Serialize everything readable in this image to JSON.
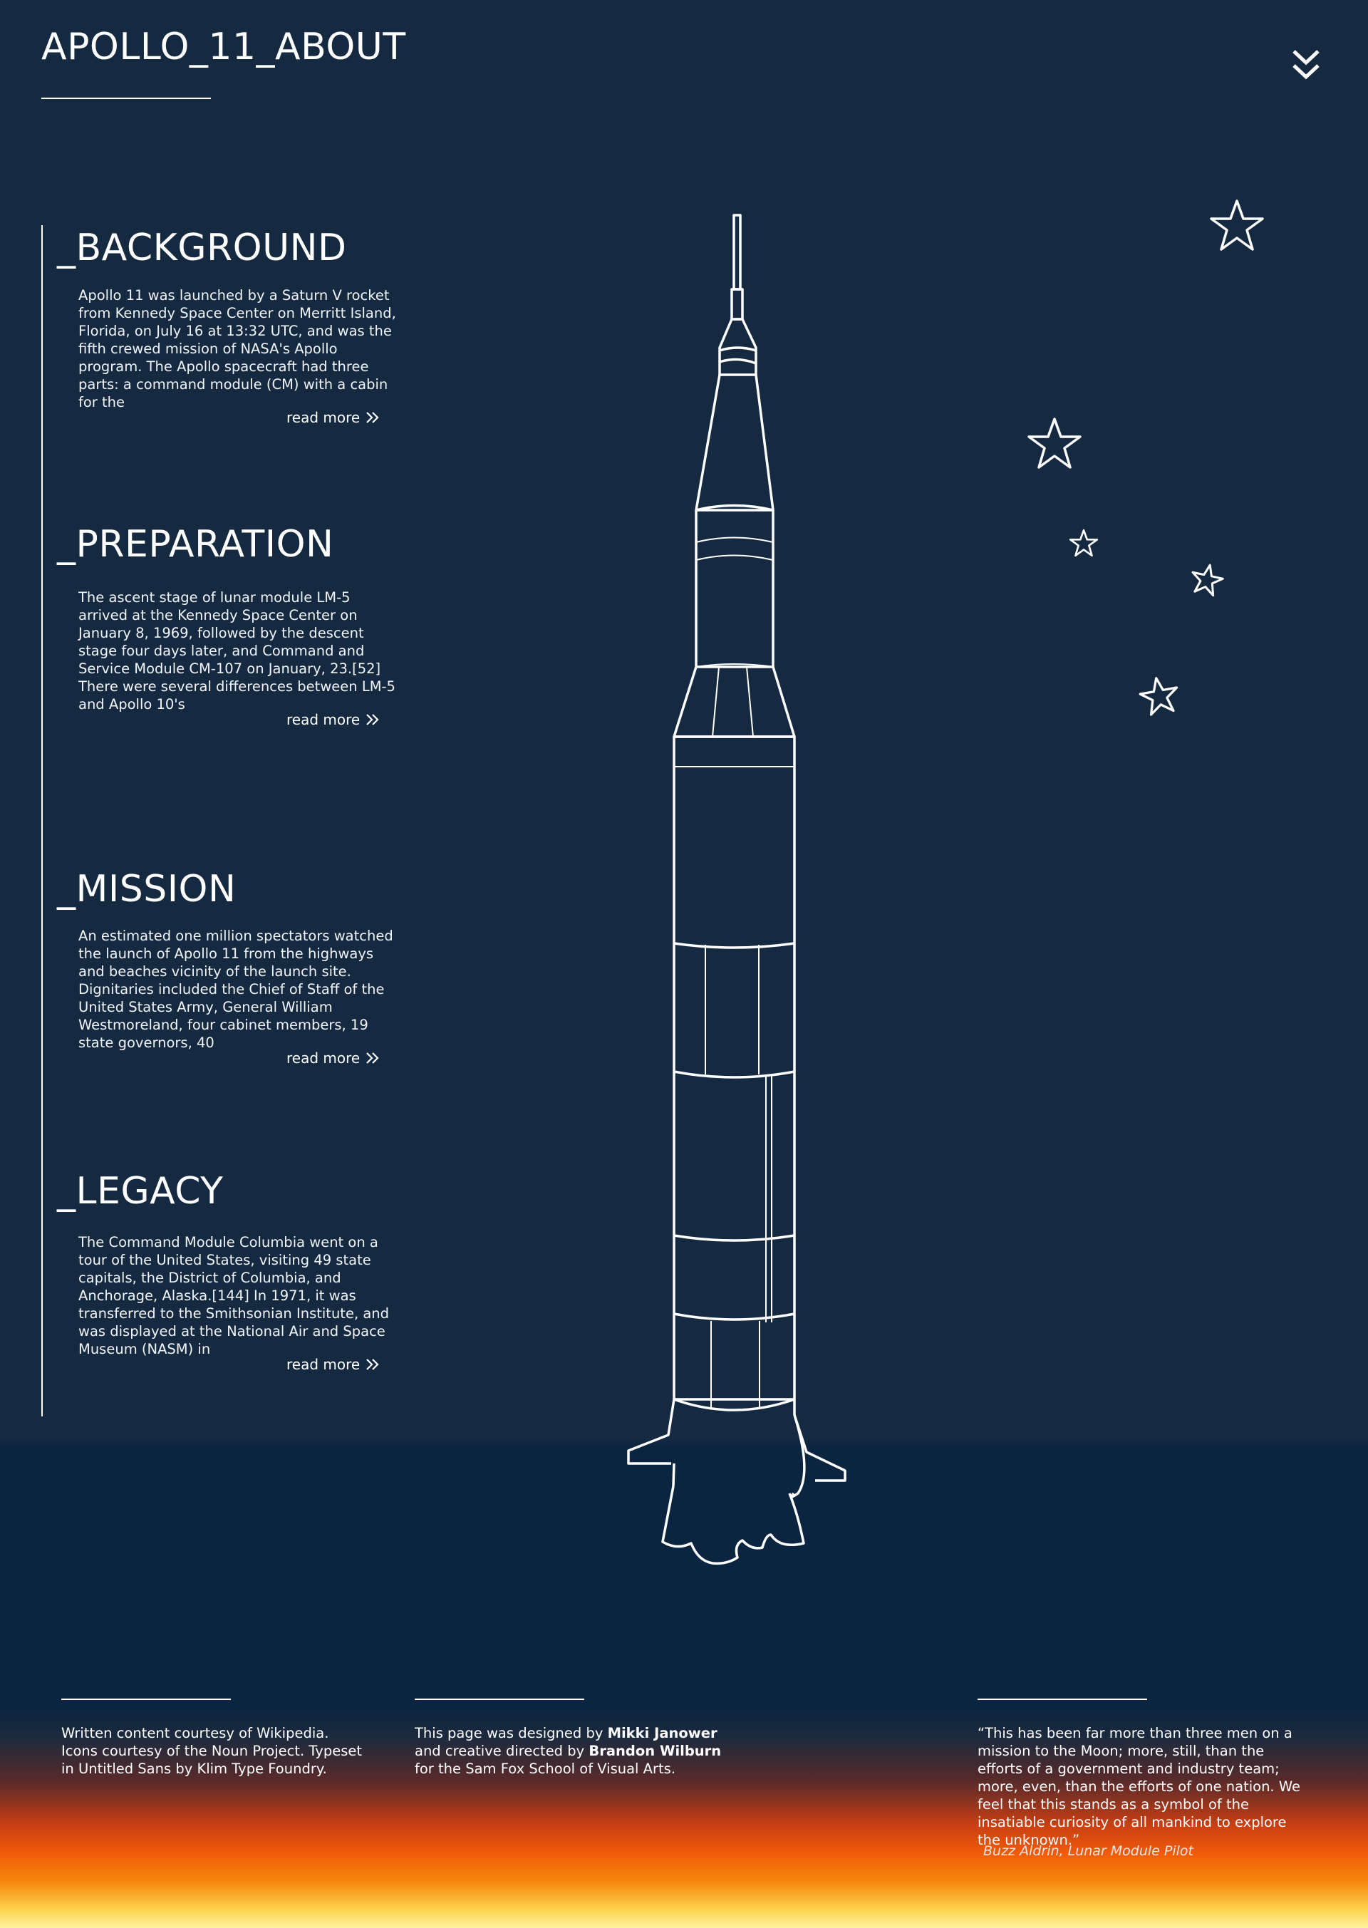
{
  "header": {
    "title": "APOLLO_11_ABOUT",
    "menu_icon": "double-chevron-down-icon"
  },
  "sections": [
    {
      "heading": "_BACKGROUND",
      "body": "Apollo 11 was launched by a Saturn V rocket from Kennedy Space Center on Merritt Island, Florida, on July 16 at 13:32 UTC, and was the fifth crewed mission of NASA's Apollo program. The Apollo spacecraft had three parts: a command module (CM) with a cabin for the",
      "link": "read more"
    },
    {
      "heading": "_PREPARATION",
      "body": "The ascent stage of lunar module LM-5 arrived at the Kennedy Space Center on January 8, 1969, followed by the descent stage four days later, and Command and Service Module CM-107 on January, 23.[52] There were several differences between LM-5 and Apollo 10's",
      "link": "read more"
    },
    {
      "heading": "_MISSION",
      "body": "An estimated one million spectators watched the launch of Apollo 11 from the highways and beaches vicinity of the launch site. Dignitaries included the Chief of Staff of the United States Army, General William Westmoreland, four cabinet members, 19 state governors, 40",
      "link": "read more"
    },
    {
      "heading": "_LEGACY",
      "body": "The Command Module Columbia went on a tour of the United States, visiting 49 state capitals, the District of Columbia, and Anchorage, Alaska.[144] In 1971, it was transferred to the Smithsonian Institute, and was displayed at the National Air and Space Museum (NASM) in",
      "link": "read more"
    }
  ],
  "footer": {
    "credits": "Written content courtesy of Wikipedia. Icons courtesy of the Noun Project. Typeset in Untitled Sans by Klim Type Foundry.",
    "design_prefix": "This page was designed by ",
    "designer": "Mikki Janower",
    "design_mid": " and creative directed by ",
    "director": "Brandon Wilburn",
    "design_suffix": " for the Sam Fox School of Visual Arts.",
    "quote": "“This has been far more than three men on a mission to the Moon; more, still, than the efforts of a government and industry team; more, even, than the efforts of one nation. We feel that this stands as a symbol of the insatiable curiosity of all mankind to explore the unknown.”",
    "quote_attribution": "Buzz Aldrin, Lunar Module Pilot"
  },
  "decor": {
    "rocket_icon": "saturn-v-rocket-icon",
    "star_icon": "star-icon",
    "colors": {
      "background": "#152a41",
      "footer_background": "#0b2540",
      "sunset_orange": "#ef5a0a",
      "sunset_yellow": "#fcd24d",
      "line": "#ffffff"
    }
  }
}
